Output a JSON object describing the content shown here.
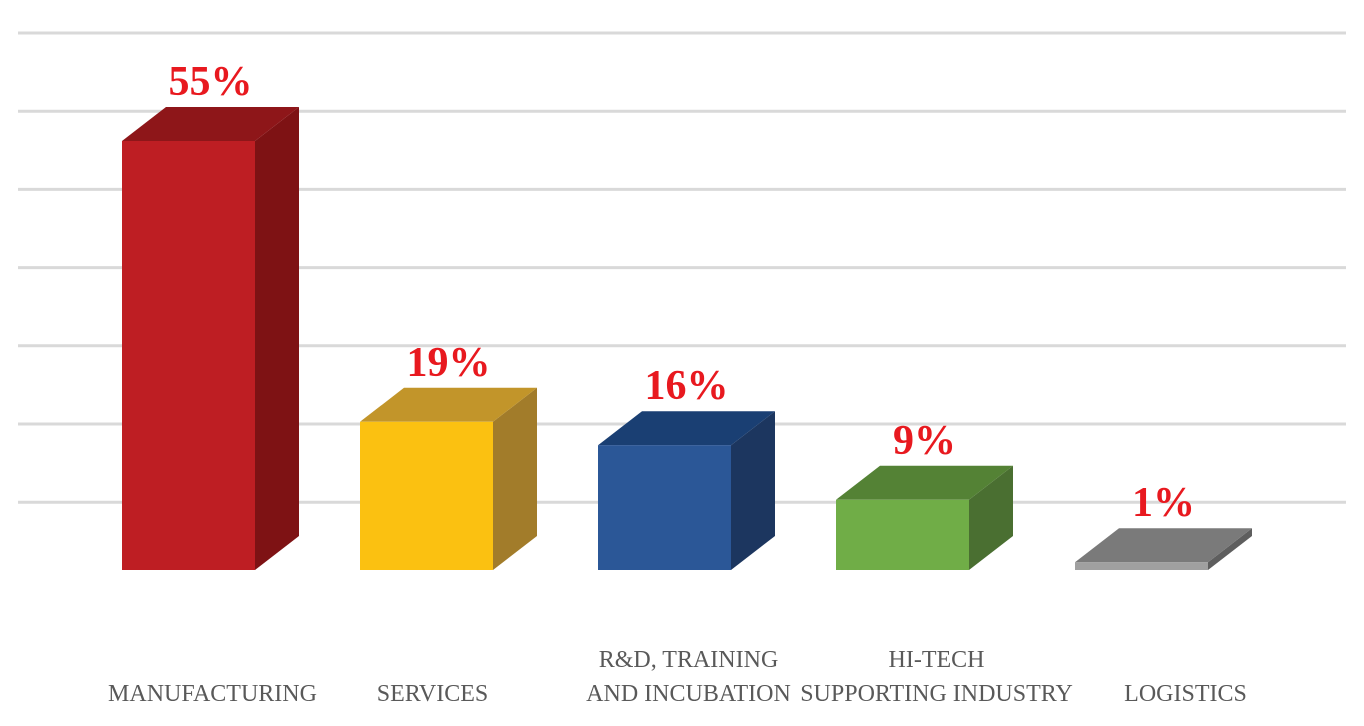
{
  "chart_data": {
    "type": "bar",
    "style": "3d-column",
    "title": "",
    "xlabel": "",
    "ylabel": "",
    "ylim": [
      0,
      60
    ],
    "grid": true,
    "categories": [
      [
        "MANUFACTURING"
      ],
      [
        "SERVICES"
      ],
      [
        "R&D, TRAINING",
        "AND INCUBATION"
      ],
      [
        "HI-TECH",
        "SUPPORTING INDUSTRY"
      ],
      [
        "LOGISTICS"
      ]
    ],
    "values": [
      55,
      19,
      16,
      9,
      1
    ],
    "data_labels": [
      "55%",
      "19%",
      "16%",
      "9%",
      "1%"
    ],
    "colors": [
      {
        "front": "#BE1E23",
        "top": "#8E1619",
        "side": "#7E1214"
      },
      {
        "front": "#FBC111",
        "top": "#C2952A",
        "side": "#A27C2A"
      },
      {
        "front": "#2B5797",
        "top": "#1A3F73",
        "side": "#1C365F"
      },
      {
        "front": "#70AD47",
        "top": "#548235",
        "side": "#4A6F31"
      },
      {
        "front": "#A0A0A0",
        "top": "#7A7A7A",
        "side": "#5E5E5E"
      }
    ]
  }
}
